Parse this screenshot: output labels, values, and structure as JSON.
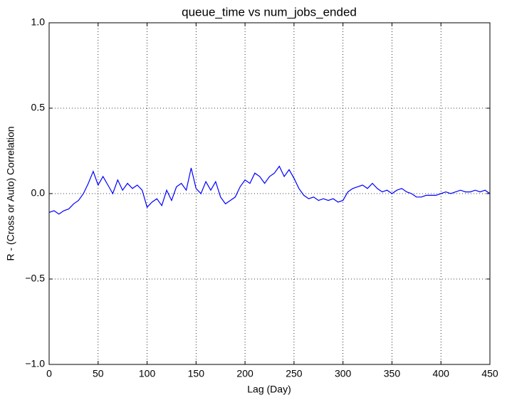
{
  "chart_data": {
    "type": "line",
    "title": "queue_time vs num_jobs_ended",
    "x_label": "Lag (Day)",
    "y_label": "R - (Cross or Auto) Correlation",
    "x": [
      0,
      5,
      10,
      15,
      20,
      25,
      30,
      35,
      40,
      45,
      50,
      55,
      60,
      65,
      70,
      75,
      80,
      85,
      90,
      95,
      100,
      105,
      110,
      115,
      120,
      125,
      130,
      135,
      140,
      145,
      150,
      155,
      160,
      165,
      170,
      175,
      180,
      185,
      190,
      195,
      200,
      205,
      210,
      215,
      220,
      225,
      230,
      235,
      240,
      245,
      250,
      255,
      260,
      265,
      270,
      275,
      280,
      285,
      290,
      295,
      300,
      305,
      310,
      315,
      320,
      325,
      330,
      335,
      340,
      345,
      350,
      355,
      360,
      365,
      370,
      375,
      380,
      385,
      390,
      395,
      400,
      405,
      410,
      415,
      420,
      425,
      430,
      435,
      440,
      445,
      450
    ],
    "series": [
      {
        "name": "R",
        "color": "#0000ff",
        "values": [
          -0.11,
          -0.1,
          -0.12,
          -0.1,
          -0.09,
          -0.06,
          -0.04,
          0.0,
          0.06,
          0.13,
          0.05,
          0.1,
          0.05,
          0.0,
          0.08,
          0.02,
          0.06,
          0.03,
          0.05,
          0.02,
          -0.08,
          -0.05,
          -0.03,
          -0.07,
          0.02,
          -0.04,
          0.04,
          0.06,
          0.02,
          0.15,
          0.03,
          0.0,
          0.07,
          0.02,
          0.07,
          -0.02,
          -0.06,
          -0.04,
          -0.02,
          0.04,
          0.08,
          0.06,
          0.12,
          0.1,
          0.06,
          0.1,
          0.12,
          0.16,
          0.1,
          0.14,
          0.09,
          0.03,
          -0.01,
          -0.03,
          -0.02,
          -0.04,
          -0.03,
          -0.04,
          -0.03,
          -0.05,
          -0.04,
          0.01,
          0.03,
          0.04,
          0.05,
          0.03,
          0.06,
          0.03,
          0.01,
          0.02,
          0.0,
          0.02,
          0.03,
          0.01,
          0.0,
          -0.02,
          -0.02,
          -0.01,
          -0.01,
          -0.01,
          0.0,
          0.01,
          0.0,
          0.01,
          0.02,
          0.01,
          0.01,
          0.02,
          0.01,
          0.02,
          0.0
        ]
      }
    ],
    "xlim": [
      0,
      450
    ],
    "ylim": [
      -1,
      1
    ],
    "xticks": [
      0,
      50,
      100,
      150,
      200,
      250,
      300,
      350,
      400,
      450
    ],
    "yticks": [
      {
        "value": -1,
        "label": "−1.0"
      },
      {
        "value": -0.5,
        "label": "−0.5"
      },
      {
        "value": 0,
        "label": "0.0"
      },
      {
        "value": 0.5,
        "label": "0.5"
      },
      {
        "value": 1,
        "label": "1.0"
      }
    ],
    "grid": true
  }
}
